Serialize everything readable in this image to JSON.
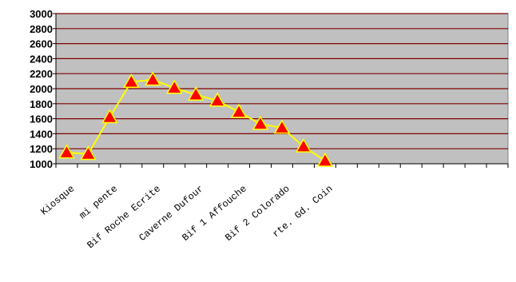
{
  "chart_data": {
    "type": "line",
    "title": "",
    "xlabel": "",
    "ylabel": "",
    "ylim": [
      1000,
      3000
    ],
    "yticks": [
      1000,
      1200,
      1400,
      1600,
      1800,
      2000,
      2200,
      2400,
      2600,
      2800,
      3000
    ],
    "grid": true,
    "legend": "none",
    "categories": [
      "Kiosque",
      "",
      "mi pente",
      "",
      "Bif Roche Ecrite",
      "",
      "Caverne Dufour",
      "",
      "Bif 1 Affouche",
      "",
      "Bif 2 Colorado",
      "",
      "rte. Gd. Coin",
      "",
      "",
      "",
      "",
      "",
      "",
      "",
      ""
    ],
    "series": [
      {
        "values": [
          1150,
          1130,
          1620,
          2090,
          2120,
          2010,
          1920,
          1840,
          1690,
          1530,
          1480,
          1230,
          1040,
          null,
          null,
          null,
          null,
          null,
          null,
          null,
          null
        ]
      }
    ],
    "colors": {
      "plot_bg": "#c0c0c0",
      "gridline": "#800000",
      "line": "#ffff00",
      "marker_fill": "#ff0000",
      "marker_edge": "#ffff00"
    }
  }
}
